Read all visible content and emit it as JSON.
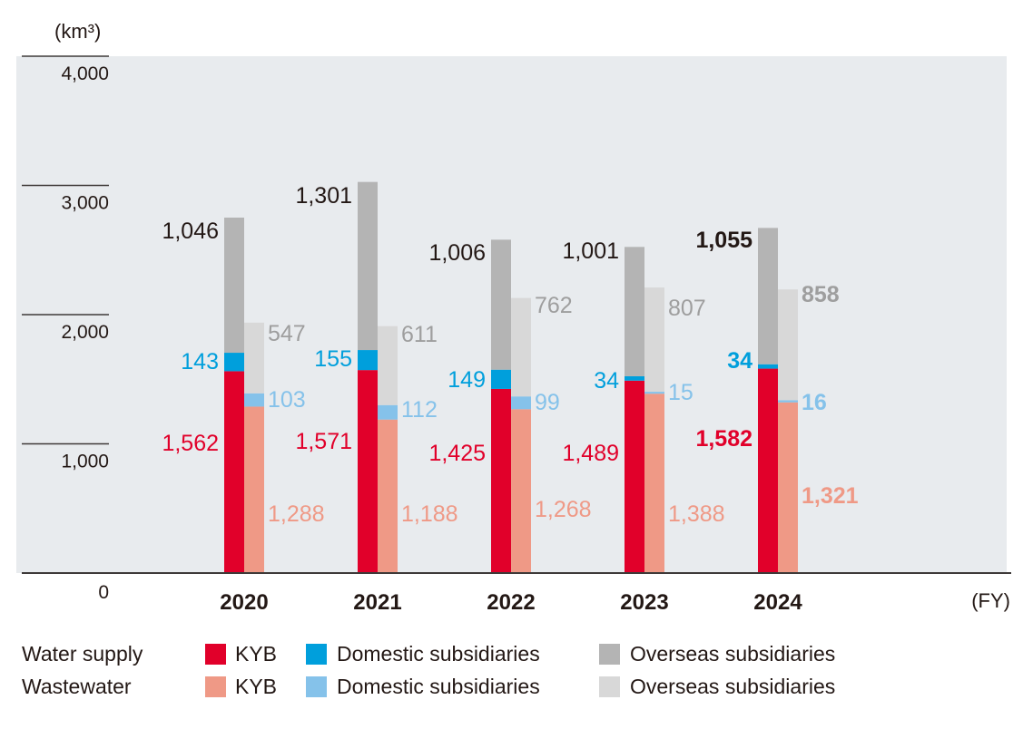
{
  "chart_data": {
    "type": "bar",
    "stacked": true,
    "grouped": true,
    "title": "",
    "unit_label": "(km³)",
    "xlabel": "(FY)",
    "ylabel": "",
    "ylim": [
      0,
      4000
    ],
    "yticks": [
      "0",
      "1,000",
      "2,000",
      "3,000",
      "4,000"
    ],
    "ytick_values": [
      0,
      1000,
      2000,
      3000,
      4000
    ],
    "grid": false,
    "categories": [
      "2020",
      "2021",
      "2022",
      "2023",
      "2024"
    ],
    "highlight_category": "2024",
    "groups": [
      {
        "name": "Water supply",
        "series": [
          {
            "name": "KYB",
            "color": "#e1002a",
            "label_color": "#e1002a",
            "values": [
              1562,
              1571,
              1425,
              1489,
              1582
            ]
          },
          {
            "name": "Domestic subsidiaries",
            "color": "#009fdc",
            "label_color": "#009fdc",
            "values": [
              143,
              155,
              149,
              34,
              34
            ]
          },
          {
            "name": "Overseas subsidiaries",
            "color": "#b4b4b4",
            "label_color": "#231815",
            "values": [
              1046,
              1301,
              1006,
              1001,
              1055
            ]
          }
        ]
      },
      {
        "name": "Wastewater",
        "series": [
          {
            "name": "KYB",
            "color": "#ef9986",
            "label_color": "#ef9986",
            "values": [
              1288,
              1188,
              1268,
              1388,
              1321
            ]
          },
          {
            "name": "Domestic subsidiaries",
            "color": "#85c2ea",
            "label_color": "#85c2ea",
            "values": [
              103,
              112,
              99,
              15,
              16
            ]
          },
          {
            "name": "Overseas subsidiaries",
            "color": "#d8d8d8",
            "label_color": "#9e9e9e",
            "values": [
              547,
              611,
              762,
              807,
              858
            ]
          }
        ]
      }
    ],
    "legend": {
      "placement": "bottom",
      "rows": [
        {
          "label": "Water supply",
          "items": [
            {
              "name": "KYB",
              "color": "#e1002a"
            },
            {
              "name": "Domestic subsidiaries",
              "color": "#009fdc"
            },
            {
              "name": "Overseas subsidiaries",
              "color": "#b4b4b4"
            }
          ]
        },
        {
          "label": "Wastewater",
          "items": [
            {
              "name": "KYB",
              "color": "#ef9986"
            },
            {
              "name": "Domestic subsidiaries",
              "color": "#85c2ea"
            },
            {
              "name": "Overseas subsidiaries",
              "color": "#d8d8d8"
            }
          ]
        }
      ]
    }
  },
  "colors": {
    "plot_background": "#e8ebee",
    "axis": "#3e3a39",
    "text": "#231815"
  }
}
